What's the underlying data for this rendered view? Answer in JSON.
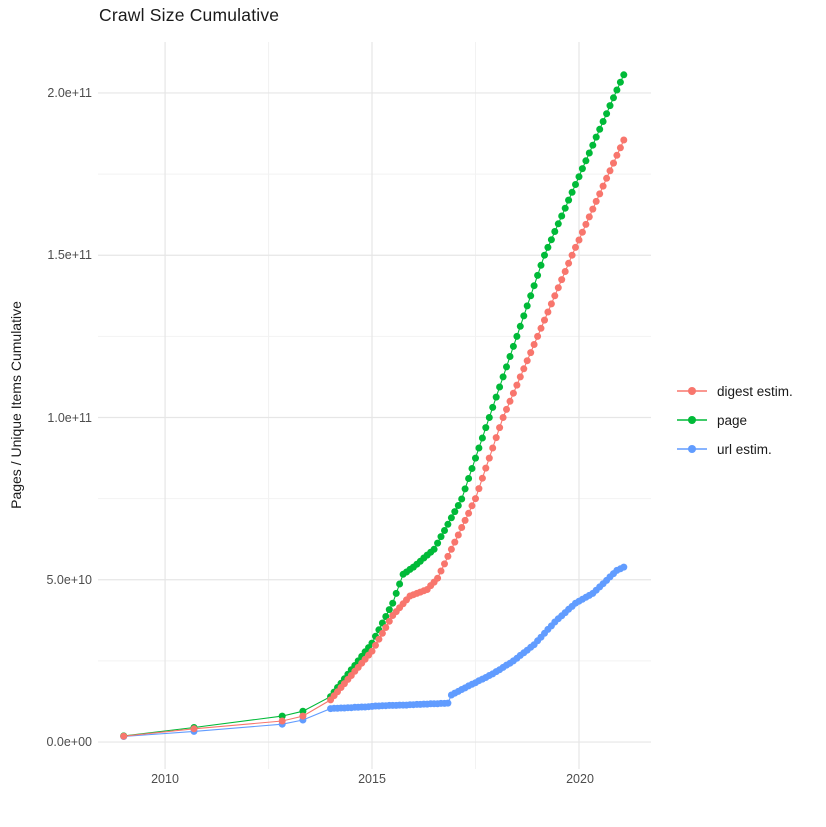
{
  "chart_data": {
    "type": "line",
    "markers": true,
    "title": "Crawl Size Cumulative",
    "xlabel": "",
    "ylabel": "Pages / Unique Items Cumulative",
    "legend_position": "right",
    "grid": true,
    "value_unit_multiplier": 1000000000.0,
    "x_range": [
      2008.38,
      2021.74
    ],
    "y_range_1e9": [
      -8.3,
      215.7
    ],
    "x_major_ticks": [
      {
        "value": 2010,
        "label": "2010"
      },
      {
        "value": 2015,
        "label": "2015"
      },
      {
        "value": 2020,
        "label": "2020"
      }
    ],
    "x_minor_ticks": [
      2012.5,
      2017.5
    ],
    "y_major_ticks": [
      {
        "value_1e9": 0,
        "label": "0.0e+00"
      },
      {
        "value_1e9": 50,
        "label": "5.0e+10"
      },
      {
        "value_1e9": 100,
        "label": "1.0e+11"
      },
      {
        "value_1e9": 150,
        "label": "1.5e+11"
      },
      {
        "value_1e9": 200,
        "label": "2.0e+11"
      }
    ],
    "y_minor_ticks_1e9": [
      25,
      75,
      125,
      175
    ],
    "draw_order": [
      2,
      1,
      0
    ],
    "series": [
      {
        "name": "digest estim.",
        "color": "#F8766D",
        "early_points": [
          [
            2009.0,
            1.8
          ],
          [
            2010.7,
            4.1
          ],
          [
            2012.83,
            6.5
          ],
          [
            2013.33,
            8.0
          ]
        ],
        "monthly_start": 2014.0,
        "monthly_step_years": 0.0833333,
        "monthly_values_1e9": [
          13.0,
          14.3,
          15.5,
          16.8,
          18.0,
          19.3,
          20.5,
          21.8,
          23.0,
          24.3,
          25.5,
          26.8,
          28.0,
          29.8,
          31.7,
          33.5,
          35.3,
          37.2,
          39.0,
          40.2,
          41.4,
          42.6,
          43.8,
          45.0,
          45.4,
          45.8,
          46.2,
          46.6,
          47.0,
          48.2,
          49.3,
          50.5,
          52.7,
          54.9,
          57.2,
          59.4,
          61.6,
          63.8,
          66.1,
          68.3,
          70.5,
          72.8,
          75.0,
          78.1,
          81.3,
          84.4,
          87.5,
          90.6,
          93.8,
          96.9,
          100.0,
          102.5,
          105.0,
          107.5,
          110.0,
          112.5,
          115.0,
          117.5,
          120.0,
          122.5,
          125.0,
          127.5,
          130.0,
          132.5,
          135.0,
          137.5,
          140.0,
          142.5,
          145.0,
          147.5,
          150.0,
          152.4,
          154.7,
          157.1,
          159.5,
          161.8,
          164.2,
          166.6,
          168.9,
          171.3,
          173.7,
          176.0,
          178.4,
          180.8,
          183.1,
          185.5
        ]
      },
      {
        "name": "page",
        "color": "#00BA38",
        "early_points": [
          [
            2009.0,
            1.9
          ],
          [
            2010.7,
            4.5
          ],
          [
            2012.83,
            8.0
          ],
          [
            2013.33,
            9.5
          ]
        ],
        "monthly_start": 2014.0,
        "monthly_step_years": 0.0833333,
        "monthly_values_1e9": [
          14.0,
          15.4,
          16.8,
          18.1,
          19.5,
          20.9,
          22.3,
          23.6,
          25.0,
          26.4,
          27.8,
          29.1,
          30.5,
          32.6,
          34.6,
          36.7,
          38.7,
          40.8,
          42.8,
          45.8,
          48.7,
          51.7,
          52.4,
          53.2,
          53.9,
          54.8,
          55.7,
          56.7,
          57.6,
          58.5,
          59.4,
          61.3,
          63.3,
          65.2,
          67.1,
          69.1,
          71.0,
          72.9,
          74.9,
          78.0,
          81.2,
          84.3,
          87.5,
          90.6,
          93.7,
          96.9,
          100.0,
          103.1,
          106.3,
          109.4,
          112.5,
          115.6,
          118.8,
          121.9,
          125.0,
          128.1,
          131.3,
          134.4,
          137.5,
          140.6,
          143.8,
          146.9,
          150.0,
          152.4,
          154.8,
          157.3,
          159.7,
          162.1,
          164.5,
          167.0,
          169.4,
          171.8,
          174.2,
          176.7,
          179.1,
          181.5,
          183.9,
          186.4,
          188.8,
          191.2,
          193.6,
          196.1,
          198.5,
          200.9,
          203.3,
          205.6
        ]
      },
      {
        "name": "url estim.",
        "color": "#619CFF",
        "early_points": [
          [
            2009.0,
            1.7
          ],
          [
            2010.7,
            3.3
          ],
          [
            2012.83,
            5.5
          ],
          [
            2013.33,
            6.8
          ]
        ],
        "monthly_start": 2014.0,
        "monthly_step_years": 0.0833333,
        "monthly_values_1e9": [
          10.3,
          10.4,
          10.4,
          10.5,
          10.5,
          10.6,
          10.6,
          10.7,
          10.7,
          10.8,
          10.8,
          10.9,
          11.0,
          11.1,
          11.1,
          11.2,
          11.2,
          11.3,
          11.3,
          11.3,
          11.4,
          11.4,
          11.4,
          11.5,
          11.5,
          11.6,
          11.6,
          11.7,
          11.7,
          11.8,
          11.8,
          11.8,
          11.9,
          11.9,
          12.0,
          14.5,
          15.1,
          15.6,
          16.2,
          16.7,
          17.3,
          17.8,
          18.3,
          18.9,
          19.4,
          19.9,
          20.5,
          21.0,
          21.7,
          22.3,
          23.0,
          23.7,
          24.3,
          25.0,
          25.8,
          26.7,
          27.5,
          28.3,
          29.2,
          30.0,
          31.2,
          32.3,
          33.5,
          34.7,
          35.8,
          37.0,
          38.0,
          38.9,
          39.9,
          40.9,
          41.8,
          42.8,
          43.4,
          44.0,
          44.6,
          45.2,
          45.8,
          46.8,
          47.8,
          48.8,
          49.8,
          50.9,
          51.9,
          52.9,
          53.4,
          53.9
        ]
      }
    ]
  },
  "style": {
    "grid_major_color": "#e6e6e6",
    "grid_minor_color": "#f2f2f2",
    "point_radius": 3.5,
    "line_width": 1.1
  }
}
